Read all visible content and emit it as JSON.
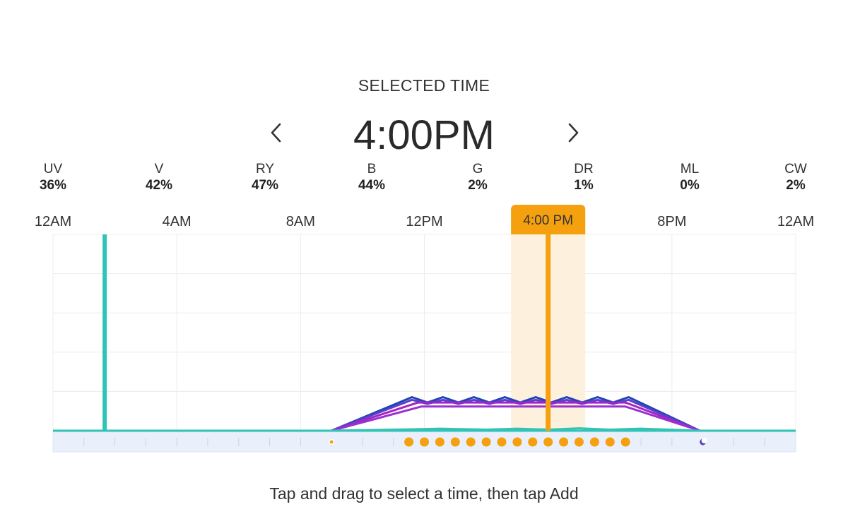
{
  "header": {
    "selected_label": "SELECTED TIME",
    "selected_time": "4:00PM"
  },
  "icons": {
    "prev": "chevron-left-icon",
    "next": "chevron-right-icon"
  },
  "channels": [
    {
      "name": "UV",
      "value": "36%"
    },
    {
      "name": "V",
      "value": "42%"
    },
    {
      "name": "RY",
      "value": "47%"
    },
    {
      "name": "B",
      "value": "44%"
    },
    {
      "name": "G",
      "value": "2%"
    },
    {
      "name": "DR",
      "value": "1%"
    },
    {
      "name": "ML",
      "value": "0%"
    },
    {
      "name": "CW",
      "value": "2%"
    }
  ],
  "chart_data": {
    "type": "line",
    "x_unit": "hour of day",
    "x_range": [
      0,
      24
    ],
    "y_range": [
      0,
      100
    ],
    "grid": true,
    "x_tick_labels": [
      {
        "hour": 0,
        "label": "12AM"
      },
      {
        "hour": 4,
        "label": "4AM"
      },
      {
        "hour": 8,
        "label": "8AM"
      },
      {
        "hour": 12,
        "label": "12PM"
      },
      {
        "hour": 20,
        "label": "8PM"
      },
      {
        "hour": 24,
        "label": "12AM"
      }
    ],
    "cursor": {
      "hour": 16,
      "label": "4:00 PM",
      "window_start_hour": 14.8,
      "window_end_hour": 17.2
    },
    "marker_hour": 1.67,
    "series": [
      {
        "color": "#1e44b8",
        "points": [
          [
            0,
            0
          ],
          [
            9,
            0
          ],
          [
            11.6,
            25
          ],
          [
            12.1,
            21
          ],
          [
            12.6,
            25
          ],
          [
            13.1,
            21
          ],
          [
            13.6,
            25
          ],
          [
            14.1,
            21
          ],
          [
            14.6,
            25
          ],
          [
            15.1,
            21
          ],
          [
            15.6,
            25
          ],
          [
            16.1,
            21
          ],
          [
            16.6,
            25
          ],
          [
            17.1,
            21
          ],
          [
            17.6,
            25
          ],
          [
            18.1,
            21
          ],
          [
            18.6,
            25
          ],
          [
            20.9,
            0
          ],
          [
            24,
            0
          ]
        ]
      },
      {
        "color": "#5a3fc8",
        "points": [
          [
            0,
            0
          ],
          [
            9,
            0
          ],
          [
            11.6,
            23
          ],
          [
            12.1,
            20
          ],
          [
            12.6,
            23
          ],
          [
            13.1,
            20
          ],
          [
            13.6,
            23
          ],
          [
            14.1,
            20
          ],
          [
            14.6,
            23
          ],
          [
            15.1,
            20
          ],
          [
            15.6,
            23
          ],
          [
            16.1,
            20
          ],
          [
            16.6,
            23
          ],
          [
            17.1,
            20
          ],
          [
            17.6,
            23
          ],
          [
            18.1,
            20
          ],
          [
            18.6,
            23
          ],
          [
            20.9,
            0
          ],
          [
            24,
            0
          ]
        ]
      },
      {
        "color": "#a324c6",
        "points": [
          [
            0,
            0
          ],
          [
            9,
            0
          ],
          [
            11.8,
            21
          ],
          [
            18.5,
            21
          ],
          [
            20.9,
            0
          ],
          [
            24,
            0
          ]
        ]
      },
      {
        "color": "#9b2fcf",
        "points": [
          [
            0,
            0
          ],
          [
            9,
            0
          ],
          [
            11.9,
            18
          ],
          [
            18.5,
            18
          ],
          [
            20.9,
            0
          ],
          [
            24,
            0
          ]
        ]
      },
      {
        "color": "#2fc4b6",
        "points": [
          [
            0,
            0
          ],
          [
            9,
            0
          ],
          [
            11.5,
            1
          ],
          [
            12.5,
            1.5
          ],
          [
            14,
            0.8
          ],
          [
            15,
            1.5
          ],
          [
            16,
            0.8
          ],
          [
            17,
            1.8
          ],
          [
            18,
            0.8
          ],
          [
            19,
            1.5
          ],
          [
            20.9,
            0
          ],
          [
            24,
            0
          ]
        ]
      }
    ],
    "timeline_dots": [
      {
        "hour": 9,
        "kind": "small-orange"
      },
      {
        "hour": 11.5,
        "kind": "orange"
      },
      {
        "hour": 12,
        "kind": "orange"
      },
      {
        "hour": 12.5,
        "kind": "orange"
      },
      {
        "hour": 13,
        "kind": "orange"
      },
      {
        "hour": 13.5,
        "kind": "orange"
      },
      {
        "hour": 14,
        "kind": "orange"
      },
      {
        "hour": 14.5,
        "kind": "orange"
      },
      {
        "hour": 15,
        "kind": "orange"
      },
      {
        "hour": 15.5,
        "kind": "orange"
      },
      {
        "hour": 16,
        "kind": "orange"
      },
      {
        "hour": 16.5,
        "kind": "orange"
      },
      {
        "hour": 17,
        "kind": "orange"
      },
      {
        "hour": 17.5,
        "kind": "orange"
      },
      {
        "hour": 18,
        "kind": "orange"
      },
      {
        "hour": 18.5,
        "kind": "orange"
      },
      {
        "hour": 21,
        "kind": "moon"
      }
    ],
    "colors": {
      "accent": "#f5a00f",
      "window": "#fdf0dc",
      "baseline": "#2fc4b6",
      "grid": "#ececec",
      "timeline_bg": "#eaf0fb"
    }
  },
  "footer": {
    "hint": "Tap and drag to select a time, then tap Add"
  }
}
